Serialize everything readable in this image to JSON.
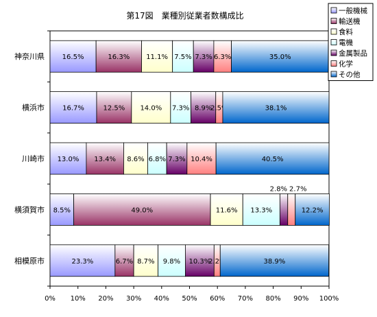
{
  "chart_data": {
    "type": "bar",
    "orientation": "horizontal",
    "stacked": "percent",
    "title": "第17図　業種別従業者数構成比",
    "categories": [
      "神奈川県",
      "横浜市",
      "川崎市",
      "横須賀市",
      "相模原市"
    ],
    "series": [
      {
        "name": "一般機械",
        "values": [
          16.5,
          16.7,
          13.0,
          8.5,
          23.3
        ],
        "labels": [
          "16.5%",
          "16.7%",
          "13.0%",
          "8.5%",
          "23.3%"
        ]
      },
      {
        "name": "輸送機",
        "values": [
          16.3,
          12.5,
          13.4,
          49.0,
          6.7
        ],
        "labels": [
          "16.3%",
          "12.5%",
          "13.4%",
          "49.0%",
          "6.7%"
        ]
      },
      {
        "name": "食料",
        "values": [
          11.1,
          14.0,
          8.6,
          11.6,
          8.7
        ],
        "labels": [
          "11.1%",
          "14.0%",
          "8.6%",
          "11.6%",
          "8.7%"
        ]
      },
      {
        "name": "電機",
        "values": [
          7.5,
          7.3,
          6.8,
          13.3,
          9.8
        ],
        "labels": [
          "7.5%",
          "7.3%",
          "6.8%",
          "13.3%",
          "9.8%"
        ]
      },
      {
        "name": "金属製品",
        "values": [
          7.3,
          8.9,
          7.3,
          2.8,
          10.3
        ],
        "labels": [
          "7.3%",
          "8.9%",
          "7.3%",
          "2.8%",
          "10.3%"
        ]
      },
      {
        "name": "化学",
        "values": [
          6.3,
          2.5,
          10.4,
          2.7,
          2.2
        ],
        "labels": [
          "6.3%",
          "2.5%",
          "10.4%",
          "2.7%",
          "2.2%"
        ]
      },
      {
        "name": "その他",
        "values": [
          35.0,
          38.1,
          40.5,
          12.2,
          38.9
        ],
        "labels": [
          "35.0%",
          "38.1%",
          "40.5%",
          "12.2%",
          "38.9%"
        ]
      }
    ],
    "x_ticks": [
      "0%",
      "10%",
      "20%",
      "30%",
      "40%",
      "50%",
      "60%",
      "70%",
      "80%",
      "90%",
      "100%"
    ],
    "xlim": [
      0,
      100
    ],
    "grid": false,
    "legend_position": "top-right",
    "colors": {
      "一般機械": [
        "#ffffff",
        "#9999ff"
      ],
      "輸送機": [
        "#ffffff",
        "#993366"
      ],
      "食料": [
        "#ffffff",
        "#ffffcc"
      ],
      "電機": [
        "#ffffff",
        "#ccffff"
      ],
      "金属製品": [
        "#ffffff",
        "#660066"
      ],
      "化学": [
        "#ffffff",
        "#ff8080"
      ],
      "その他": [
        "#ffffff",
        "#0066cc"
      ]
    }
  }
}
